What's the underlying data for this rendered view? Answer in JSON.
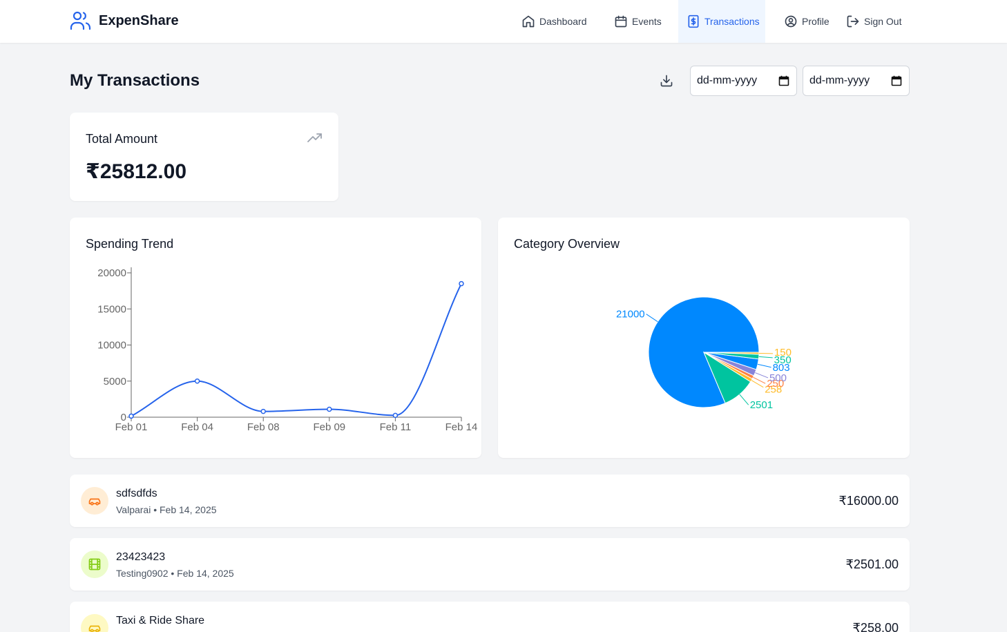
{
  "app": {
    "name": "ExpenShare"
  },
  "nav": {
    "items": [
      {
        "label": "Dashboard",
        "icon": "home-icon",
        "active": false
      },
      {
        "label": "Events",
        "icon": "calendar-icon",
        "active": false
      },
      {
        "label": "Transactions",
        "icon": "dollar-receipt-icon",
        "active": true
      },
      {
        "label": "Profile",
        "icon": "user-circle-icon",
        "active": false
      },
      {
        "label": "Sign Out",
        "icon": "logout-icon",
        "active": false
      }
    ]
  },
  "page": {
    "title": "My Transactions",
    "start_date_placeholder": "dd-mm-yyyy",
    "end_date_placeholder": "dd-mm-yyyy"
  },
  "summary": {
    "label": "Total Amount",
    "value": "₹25812.00"
  },
  "trend_card": {
    "title": "Spending Trend"
  },
  "category_card": {
    "title": "Category Overview"
  },
  "chart_data": [
    {
      "type": "line",
      "title": "Spending Trend",
      "categories": [
        "Feb 01",
        "Feb 04",
        "Feb 08",
        "Feb 09",
        "Feb 11",
        "Feb 14"
      ],
      "values": [
        150,
        5000,
        800,
        1100,
        250,
        18500
      ],
      "yticks": [
        0,
        5000,
        10000,
        15000,
        20000
      ],
      "ylim": [
        0,
        20000
      ],
      "color": "#2563eb"
    },
    {
      "type": "pie",
      "title": "Category Overview",
      "slices": [
        {
          "value": 21000,
          "label": "21000",
          "color": "#0088fe"
        },
        {
          "value": 2501,
          "label": "2501",
          "color": "#00c49f"
        },
        {
          "value": 258,
          "label": "258",
          "color": "#ffbb28"
        },
        {
          "value": 250,
          "label": "250",
          "color": "#ff8042"
        },
        {
          "value": 500,
          "label": "500",
          "color": "#8884d8"
        },
        {
          "value": 803,
          "label": "803",
          "color": "#0088fe"
        },
        {
          "value": 350,
          "label": "350",
          "color": "#00c49f"
        },
        {
          "value": 150,
          "label": "150",
          "color": "#ffbb28"
        }
      ]
    }
  ],
  "transactions": [
    {
      "title": "sdfsdfds",
      "subtitle": "Valparai • Feb 14, 2025",
      "amount": "₹16000.00",
      "icon": "car-icon",
      "icon_color": "#f97316",
      "icon_bg": "#ffedd5"
    },
    {
      "title": "23423423",
      "subtitle": "Testing0902 • Feb 14, 2025",
      "amount": "₹2501.00",
      "icon": "film-icon",
      "icon_color": "#84cc16",
      "icon_bg": "#ecfccb"
    },
    {
      "title": "Taxi & Ride Share",
      "subtitle": "",
      "amount": "₹258.00",
      "icon": "car-icon",
      "icon_color": "#eab308",
      "icon_bg": "#fef9c3"
    }
  ]
}
